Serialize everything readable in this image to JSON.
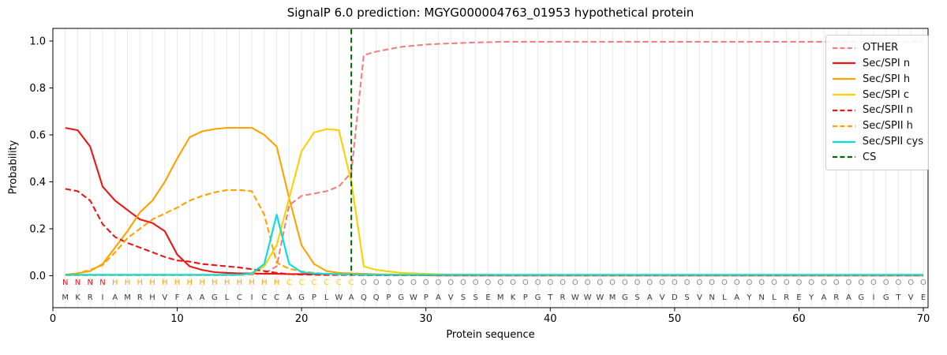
{
  "chart_data": {
    "type": "line",
    "title": "SignalP 6.0 prediction: MGYG000004763_01953 hypothetical protein",
    "xlabel": "Protein sequence",
    "ylabel": "Probability",
    "xlim": [
      0,
      70.4
    ],
    "ylim": [
      0,
      1.0
    ],
    "xticks": [
      0,
      10,
      20,
      30,
      40,
      50,
      60,
      70
    ],
    "ytick_labels": [
      "0.0",
      "0.2",
      "0.4",
      "0.6",
      "0.8",
      "1.0"
    ],
    "yticks": [
      0,
      0.2,
      0.4,
      0.6,
      0.8,
      1.0
    ],
    "grid": "vertical line at every residue position",
    "legend_position": "upper right",
    "positions": [
      1,
      2,
      3,
      4,
      5,
      6,
      7,
      8,
      9,
      10,
      11,
      12,
      13,
      14,
      15,
      16,
      17,
      18,
      19,
      20,
      21,
      22,
      23,
      24,
      25,
      26,
      27,
      28,
      29,
      30,
      31,
      32,
      33,
      34,
      35,
      36,
      37,
      38,
      39,
      40,
      41,
      42,
      43,
      44,
      45,
      46,
      47,
      48,
      49,
      50,
      51,
      52,
      53,
      54,
      55,
      56,
      57,
      58,
      59,
      60,
      61,
      62,
      63,
      64,
      65,
      66,
      67,
      68,
      69,
      70
    ],
    "series": [
      {
        "name": "OTHER",
        "color": "#f08080",
        "style": "dashed",
        "values": [
          0.002,
          0.002,
          0.002,
          0.002,
          0.002,
          0.002,
          0.002,
          0.002,
          0.002,
          0.002,
          0.002,
          0.002,
          0.002,
          0.002,
          0.003,
          0.005,
          0.01,
          0.04,
          0.3,
          0.34,
          0.35,
          0.36,
          0.38,
          0.44,
          0.94,
          0.955,
          0.965,
          0.975,
          0.98,
          0.985,
          0.988,
          0.99,
          0.992,
          0.994,
          0.995,
          0.997,
          0.997,
          0.997,
          0.997,
          0.997,
          0.997,
          0.997,
          0.997,
          0.997,
          0.997,
          0.997,
          0.997,
          0.997,
          0.997,
          0.997,
          0.997,
          0.997,
          0.997,
          0.997,
          0.997,
          0.997,
          0.997,
          0.997,
          0.997,
          0.997,
          0.997,
          0.997,
          0.997,
          0.997,
          0.997,
          0.997,
          0.997,
          0.997,
          0.997,
          0.997
        ]
      },
      {
        "name": "Sec/SPI n",
        "color": "#ed1515",
        "style": "solid",
        "values": [
          0.63,
          0.62,
          0.55,
          0.38,
          0.32,
          0.28,
          0.24,
          0.225,
          0.19,
          0.09,
          0.04,
          0.025,
          0.015,
          0.012,
          0.01,
          0.01,
          0.008,
          0.008,
          0.007,
          0.007,
          0.007,
          0.007,
          0.007,
          0.007,
          0.006,
          0.005,
          0.004,
          0.003,
          0.003,
          0.002,
          0.001,
          0.001,
          0.001,
          0.001,
          0.001,
          0.001,
          0.001,
          0.001,
          0.001,
          0.001,
          0.001,
          0.001,
          0.001,
          0.001,
          0.001,
          0.001,
          0.001,
          0.001,
          0.001,
          0.001,
          0.001,
          0.001,
          0.001,
          0.001,
          0.001,
          0.001,
          0.001,
          0.001,
          0.001,
          0.001,
          0.001,
          0.001,
          0.001,
          0.001,
          0.001,
          0.001,
          0.001,
          0.001,
          0.001,
          0.001
        ]
      },
      {
        "name": "Sec/SPI h",
        "color": "#ffa200",
        "style": "solid",
        "values": [
          0.005,
          0.01,
          0.02,
          0.05,
          0.12,
          0.19,
          0.27,
          0.32,
          0.4,
          0.5,
          0.59,
          0.615,
          0.625,
          0.63,
          0.63,
          0.63,
          0.6,
          0.55,
          0.33,
          0.13,
          0.05,
          0.02,
          0.012,
          0.01,
          0.008,
          0.006,
          0.005,
          0.004,
          0.003,
          0.003,
          0.002,
          0.002,
          0.002,
          0.002,
          0.002,
          0.002,
          0.002,
          0.002,
          0.002,
          0.002,
          0.002,
          0.002,
          0.002,
          0.002,
          0.002,
          0.002,
          0.002,
          0.002,
          0.002,
          0.002,
          0.002,
          0.002,
          0.002,
          0.002,
          0.002,
          0.002,
          0.002,
          0.002,
          0.002,
          0.002,
          0.002,
          0.002,
          0.002,
          0.002,
          0.002,
          0.002,
          0.002,
          0.002,
          0.002,
          0.002
        ]
      },
      {
        "name": "Sec/SPI c",
        "color": "#ffd000",
        "style": "solid",
        "values": [
          0.003,
          0.003,
          0.003,
          0.003,
          0.003,
          0.003,
          0.003,
          0.003,
          0.003,
          0.003,
          0.003,
          0.003,
          0.003,
          0.003,
          0.004,
          0.008,
          0.04,
          0.13,
          0.33,
          0.53,
          0.61,
          0.625,
          0.62,
          0.4,
          0.04,
          0.025,
          0.018,
          0.012,
          0.01,
          0.008,
          0.006,
          0.005,
          0.005,
          0.004,
          0.004,
          0.003,
          0.003,
          0.003,
          0.003,
          0.003,
          0.003,
          0.003,
          0.003,
          0.003,
          0.003,
          0.003,
          0.003,
          0.003,
          0.003,
          0.003,
          0.003,
          0.003,
          0.003,
          0.003,
          0.003,
          0.003,
          0.003,
          0.003,
          0.003,
          0.003,
          0.003,
          0.003,
          0.003,
          0.003,
          0.003,
          0.003,
          0.003,
          0.003,
          0.003,
          0.003
        ]
      },
      {
        "name": "Sec/SPII n",
        "color": "#ed1515",
        "style": "dashed",
        "values": [
          0.37,
          0.36,
          0.32,
          0.22,
          0.165,
          0.14,
          0.12,
          0.1,
          0.08,
          0.065,
          0.06,
          0.05,
          0.045,
          0.04,
          0.035,
          0.028,
          0.02,
          0.012,
          0.007,
          0.005,
          0.004,
          0.003,
          0.003,
          0.003,
          0.002,
          0.002,
          0.002,
          0.002,
          0.002,
          0.002,
          0.002,
          0.002,
          0.002,
          0.002,
          0.002,
          0.002,
          0.002,
          0.002,
          0.002,
          0.002,
          0.002,
          0.002,
          0.002,
          0.002,
          0.002,
          0.002,
          0.002,
          0.002,
          0.002,
          0.002,
          0.002,
          0.002,
          0.002,
          0.002,
          0.002,
          0.002,
          0.002,
          0.002,
          0.002,
          0.002,
          0.002,
          0.002,
          0.002,
          0.002,
          0.002,
          0.002,
          0.002,
          0.002,
          0.002,
          0.002
        ]
      },
      {
        "name": "Sec/SPII h",
        "color": "#ffa200",
        "style": "dashed",
        "values": [
          0.004,
          0.01,
          0.025,
          0.045,
          0.1,
          0.16,
          0.2,
          0.24,
          0.265,
          0.29,
          0.32,
          0.34,
          0.355,
          0.365,
          0.365,
          0.36,
          0.26,
          0.055,
          0.03,
          0.018,
          0.012,
          0.008,
          0.006,
          0.005,
          0.003,
          0.003,
          0.003,
          0.003,
          0.003,
          0.003,
          0.003,
          0.003,
          0.003,
          0.003,
          0.003,
          0.003,
          0.003,
          0.003,
          0.003,
          0.003,
          0.003,
          0.003,
          0.003,
          0.003,
          0.003,
          0.003,
          0.003,
          0.003,
          0.003,
          0.003,
          0.003,
          0.003,
          0.003,
          0.003,
          0.003,
          0.003,
          0.003,
          0.003,
          0.003,
          0.003,
          0.003,
          0.003,
          0.003,
          0.003,
          0.003,
          0.003,
          0.003,
          0.003,
          0.003,
          0.003
        ]
      },
      {
        "name": "Sec/SPII cys",
        "color": "#00e0e0",
        "style": "solid",
        "values": [
          0.004,
          0.004,
          0.004,
          0.004,
          0.004,
          0.004,
          0.004,
          0.004,
          0.004,
          0.004,
          0.004,
          0.004,
          0.004,
          0.004,
          0.004,
          0.01,
          0.05,
          0.26,
          0.05,
          0.015,
          0.01,
          0.008,
          0.006,
          0.005,
          0.004,
          0.004,
          0.004,
          0.004,
          0.004,
          0.004,
          0.004,
          0.004,
          0.004,
          0.004,
          0.004,
          0.004,
          0.004,
          0.004,
          0.004,
          0.004,
          0.004,
          0.004,
          0.004,
          0.004,
          0.004,
          0.004,
          0.004,
          0.004,
          0.004,
          0.004,
          0.004,
          0.004,
          0.004,
          0.004,
          0.004,
          0.004,
          0.004,
          0.004,
          0.004,
          0.004,
          0.004,
          0.004,
          0.004,
          0.004,
          0.004,
          0.004,
          0.004,
          0.004,
          0.004,
          0.004
        ]
      }
    ],
    "cs_marker": {
      "name": "CS",
      "position": 24,
      "color": "#006400",
      "style": "dashed"
    },
    "sequence_track": {
      "residues": "MKRIAMRHVFAAGLCICCAGPLWAQQPGWPAVSSEMKPGTRWWWMGSAVDSVNLAYNLREYARAGIGTVE",
      "region_labels": "NNNNHHHHHHHHHHHHHHCCCCCCOOOOOOOOOOOOOOOOOOOOOOOOOOOOOOOOOOOOOOOOOOOOOO",
      "region_colors": {
        "N": "#ed1515",
        "H": "#ffa200",
        "C": "#ffd000",
        "O": "#8c8c8c"
      },
      "residue_color": "#3a3a3a"
    }
  }
}
